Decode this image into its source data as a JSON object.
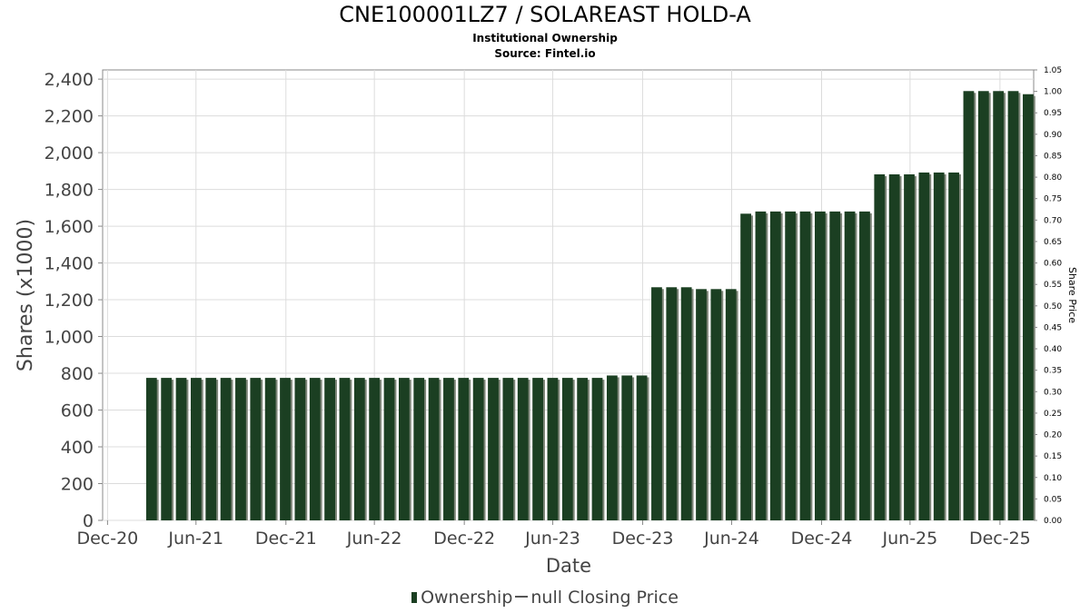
{
  "header": {
    "title": "CNE100001LZ7 / SOLAREAST HOLD-A",
    "subtitle": "Institutional Ownership",
    "source": "Source: Fintel.io"
  },
  "legend": {
    "ownership_label": "Ownership",
    "price_label": "null Closing Price"
  },
  "colors": {
    "bar": "#1b3f22",
    "bar_shadow": "#7d8578",
    "grid": "#dcdcdc",
    "axis_text": "#444444"
  },
  "chart_data": {
    "type": "bar",
    "title": "CNE100001LZ7 / SOLAREAST HOLD-A",
    "subtitle": "Institutional Ownership",
    "xlabel": "Date",
    "ylabel": "Shares (x1000)",
    "y2label": "Share Price",
    "ylim": [
      0,
      2450
    ],
    "y2lim": [
      0,
      1.05
    ],
    "yticks": [
      0,
      200,
      400,
      600,
      800,
      1000,
      1200,
      1400,
      1600,
      1800,
      2000,
      2200,
      2400
    ],
    "ytick_labels": [
      "0",
      "200",
      "400",
      "600",
      "800",
      "1,000",
      "1,200",
      "1,400",
      "1,600",
      "1,800",
      "2,000",
      "2,200",
      "2,400"
    ],
    "y2ticks": [
      "0.00",
      "0.05",
      "0.10",
      "0.15",
      "0.20",
      "0.25",
      "0.30",
      "0.35",
      "0.40",
      "0.45",
      "0.50",
      "0.55",
      "0.60",
      "0.65",
      "0.70",
      "0.75",
      "0.80",
      "0.85",
      "0.90",
      "0.95",
      "1.00",
      "1.05"
    ],
    "xlim_days": [
      -10,
      1895
    ],
    "xticks": [
      {
        "label": "Dec-20",
        "day": 0
      },
      {
        "label": "Jun-21",
        "day": 181
      },
      {
        "label": "Dec-21",
        "day": 365
      },
      {
        "label": "Jun-22",
        "day": 546
      },
      {
        "label": "Dec-22",
        "day": 730
      },
      {
        "label": "Jun-23",
        "day": 911
      },
      {
        "label": "Dec-23",
        "day": 1095
      },
      {
        "label": "Jun-24",
        "day": 1277
      },
      {
        "label": "Dec-24",
        "day": 1461
      },
      {
        "label": "Jun-25",
        "day": 1642
      },
      {
        "label": "Dec-25",
        "day": 1826
      }
    ],
    "series": [
      {
        "name": "Ownership",
        "x_start_day": 90,
        "step_days": 30.4,
        "values": [
          775,
          775,
          775,
          775,
          775,
          775,
          775,
          775,
          775,
          775,
          775,
          775,
          775,
          775,
          775,
          775,
          775,
          775,
          775,
          775,
          775,
          775,
          775,
          775,
          775,
          775,
          775,
          775,
          775,
          775,
          775,
          788,
          788,
          788,
          1268,
          1268,
          1268,
          1258,
          1258,
          1258,
          1668,
          1680,
          1680,
          1680,
          1680,
          1680,
          1680,
          1680,
          1680,
          1882,
          1882,
          1882,
          1892,
          1892,
          1892,
          2335,
          2335,
          2335,
          2335,
          2318
        ]
      }
    ],
    "grid": true,
    "legend_position": "bottom-center"
  }
}
